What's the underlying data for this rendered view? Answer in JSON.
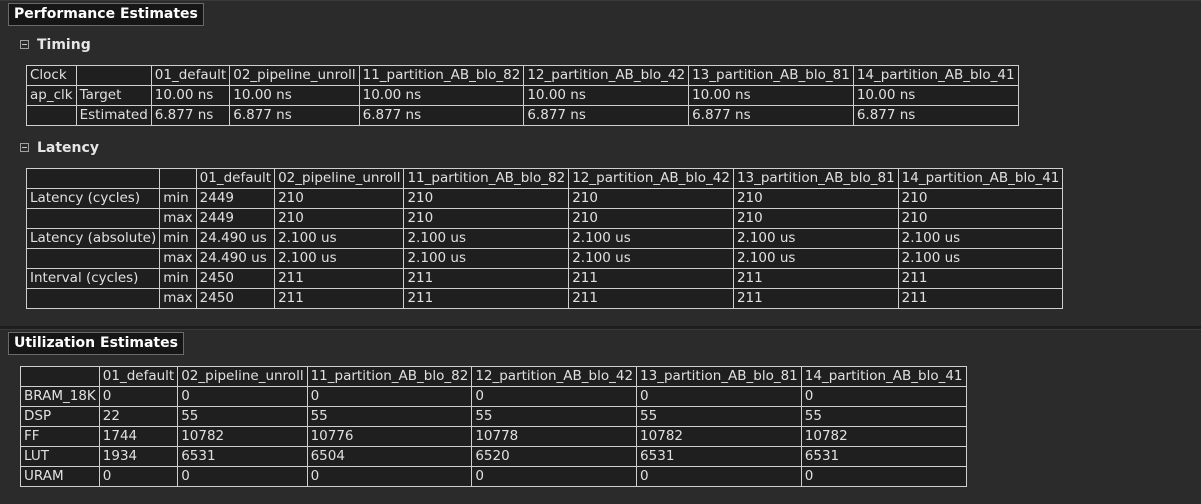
{
  "perf": {
    "title": "Performance Estimates",
    "timing_title": "Timing",
    "latency_title": "Latency"
  },
  "util": {
    "title": "Utilization Estimates"
  },
  "timing": {
    "clock_header": "Clock",
    "solutions": [
      "01_default",
      "02_pipeline_unroll",
      "11_partition_AB_blo_82",
      "12_partition_AB_blo_42",
      "13_partition_AB_blo_81",
      "14_partition_AB_blo_41"
    ],
    "clock_name": "ap_clk",
    "rows": [
      {
        "label": "Target",
        "values": [
          "10.00 ns",
          "10.00 ns",
          "10.00 ns",
          "10.00 ns",
          "10.00 ns",
          "10.00 ns"
        ]
      },
      {
        "label": "Estimated",
        "values": [
          "6.877 ns",
          "6.877 ns",
          "6.877 ns",
          "6.877 ns",
          "6.877 ns",
          "6.877 ns"
        ]
      }
    ]
  },
  "latency": {
    "solutions": [
      "01_default",
      "02_pipeline_unroll",
      "11_partition_AB_blo_82",
      "12_partition_AB_blo_42",
      "13_partition_AB_blo_81",
      "14_partition_AB_blo_41"
    ],
    "groups": [
      {
        "label": "Latency (cycles)",
        "rows": [
          {
            "kind": "min",
            "values": [
              "2449",
              "210",
              "210",
              "210",
              "210",
              "210"
            ]
          },
          {
            "kind": "max",
            "values": [
              "2449",
              "210",
              "210",
              "210",
              "210",
              "210"
            ]
          }
        ]
      },
      {
        "label": "Latency (absolute)",
        "rows": [
          {
            "kind": "min",
            "values": [
              "24.490 us",
              "2.100 us",
              "2.100 us",
              "2.100 us",
              "2.100 us",
              "2.100 us"
            ]
          },
          {
            "kind": "max",
            "values": [
              "24.490 us",
              "2.100 us",
              "2.100 us",
              "2.100 us",
              "2.100 us",
              "2.100 us"
            ]
          }
        ]
      },
      {
        "label": "Interval (cycles)",
        "rows": [
          {
            "kind": "min",
            "values": [
              "2450",
              "211",
              "211",
              "211",
              "211",
              "211"
            ]
          },
          {
            "kind": "max",
            "values": [
              "2450",
              "211",
              "211",
              "211",
              "211",
              "211"
            ]
          }
        ]
      }
    ]
  },
  "utilization": {
    "solutions": [
      "01_default",
      "02_pipeline_unroll",
      "11_partition_AB_blo_82",
      "12_partition_AB_blo_42",
      "13_partition_AB_blo_81",
      "14_partition_AB_blo_41"
    ],
    "rows": [
      {
        "resource": "BRAM_18K",
        "values": [
          "0",
          "0",
          "0",
          "0",
          "0",
          "0"
        ]
      },
      {
        "resource": "DSP",
        "values": [
          "22",
          "55",
          "55",
          "55",
          "55",
          "55"
        ]
      },
      {
        "resource": "FF",
        "values": [
          "1744",
          "10782",
          "10776",
          "10778",
          "10782",
          "10782"
        ]
      },
      {
        "resource": "LUT",
        "values": [
          "1934",
          "6531",
          "6504",
          "6520",
          "6531",
          "6531"
        ]
      },
      {
        "resource": "URAM",
        "values": [
          "0",
          "0",
          "0",
          "0",
          "0",
          "0"
        ]
      }
    ]
  }
}
